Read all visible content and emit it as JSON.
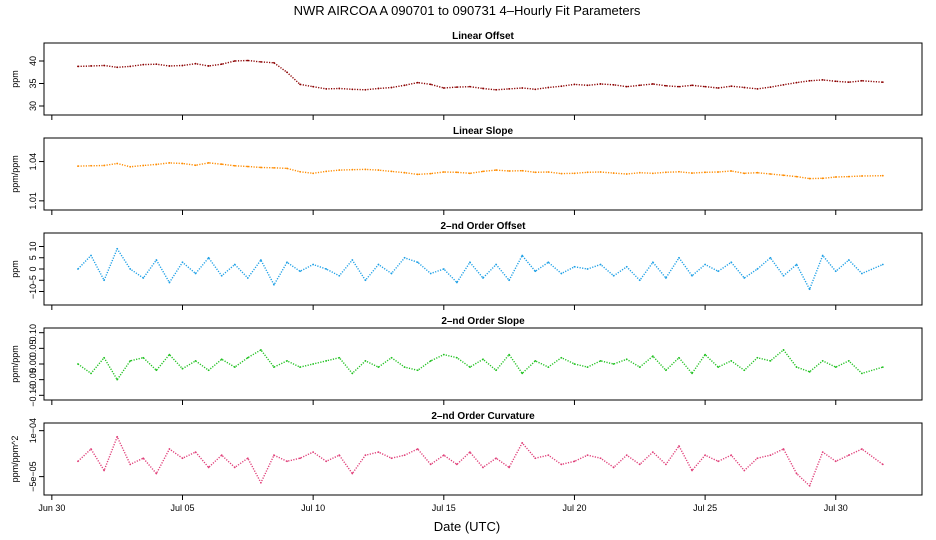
{
  "title": "NWR   AIRCOA A   090701 to 090731   4–Hourly Fit Parameters",
  "xlabel": "Date (UTC)",
  "xticks": [
    {
      "day": 0,
      "label": "Jun 30"
    },
    {
      "day": 5,
      "label": "Jul 05"
    },
    {
      "day": 10,
      "label": "Jul 10"
    },
    {
      "day": 15,
      "label": "Jul 15"
    },
    {
      "day": 20,
      "label": "Jul 20"
    },
    {
      "day": 25,
      "label": "Jul 25"
    },
    {
      "day": 30,
      "label": "Jul 30"
    }
  ],
  "xlim": [
    -0.3,
    33.3
  ],
  "chart_data": [
    {
      "type": "line",
      "title": "Linear Offset",
      "ylabel": "ppm",
      "ylim": [
        28,
        44
      ],
      "yticks": [
        30,
        35,
        40
      ],
      "ytick_labels": [
        "30",
        "35",
        "40"
      ],
      "color": "#8b0000",
      "x": [
        1,
        1.5,
        2,
        2.5,
        3,
        3.5,
        4,
        4.5,
        5,
        5.5,
        6,
        6.5,
        7,
        7.5,
        8,
        8.5,
        9,
        9.5,
        10,
        10.5,
        11,
        11.5,
        12,
        12.5,
        13,
        13.5,
        14,
        14.5,
        15,
        15.5,
        16,
        16.5,
        17,
        17.5,
        18,
        18.5,
        19,
        19.5,
        20,
        20.5,
        21,
        21.5,
        22,
        22.5,
        23,
        23.5,
        24,
        24.5,
        25,
        25.5,
        26,
        26.5,
        27,
        27.5,
        28,
        28.5,
        29,
        29.5,
        30,
        30.5,
        31,
        31.8
      ],
      "y": [
        38.8,
        38.9,
        39.0,
        38.6,
        38.8,
        39.2,
        39.3,
        38.9,
        39.0,
        39.4,
        38.9,
        39.3,
        40.0,
        40.1,
        39.8,
        39.6,
        37.5,
        34.8,
        34.3,
        33.8,
        33.9,
        33.7,
        33.6,
        33.9,
        34.1,
        34.6,
        35.2,
        34.8,
        34.0,
        34.2,
        34.3,
        33.9,
        33.6,
        33.8,
        34.0,
        33.7,
        34.1,
        34.4,
        34.8,
        34.6,
        34.9,
        34.7,
        34.3,
        34.6,
        34.9,
        34.5,
        34.3,
        34.6,
        34.3,
        34.0,
        34.4,
        34.1,
        33.8,
        34.2,
        34.7,
        35.2,
        35.6,
        35.8,
        35.5,
        35.3,
        35.6,
        35.3
      ]
    },
    {
      "type": "line",
      "title": "Linear Slope",
      "ylabel": "ppm/ppm",
      "ylim": [
        1.003,
        1.058
      ],
      "yticks": [
        1.01,
        1.04
      ],
      "ytick_labels": [
        "1.01",
        "1.04"
      ],
      "color": "#ff8c00",
      "x": [
        1,
        1.5,
        2,
        2.5,
        3,
        3.5,
        4,
        4.5,
        5,
        5.5,
        6,
        6.5,
        7,
        7.5,
        8,
        8.5,
        9,
        9.5,
        10,
        10.5,
        11,
        11.5,
        12,
        12.5,
        13,
        13.5,
        14,
        14.5,
        15,
        15.5,
        16,
        16.5,
        17,
        17.5,
        18,
        18.5,
        19,
        19.5,
        20,
        20.5,
        21,
        21.5,
        22,
        22.5,
        23,
        23.5,
        24,
        24.5,
        25,
        25.5,
        26,
        26.5,
        27,
        27.5,
        28,
        28.5,
        29,
        29.5,
        30,
        30.5,
        31,
        31.8
      ],
      "y": [
        1.0365,
        1.0368,
        1.037,
        1.0385,
        1.036,
        1.037,
        1.0378,
        1.039,
        1.0385,
        1.0372,
        1.039,
        1.038,
        1.0368,
        1.0362,
        1.0355,
        1.0352,
        1.0348,
        1.0322,
        1.031,
        1.0325,
        1.0335,
        1.0338,
        1.034,
        1.0335,
        1.0325,
        1.0315,
        1.0302,
        1.0308,
        1.032,
        1.0318,
        1.031,
        1.0325,
        1.0335,
        1.0328,
        1.033,
        1.0318,
        1.032,
        1.0308,
        1.031,
        1.0318,
        1.032,
        1.0312,
        1.0305,
        1.0315,
        1.031,
        1.0318,
        1.0322,
        1.0312,
        1.0318,
        1.032,
        1.0328,
        1.031,
        1.0315,
        1.0305,
        1.0295,
        1.0285,
        1.027,
        1.0272,
        1.0282,
        1.0285,
        1.029,
        1.0292
      ]
    },
    {
      "type": "line",
      "title": "2–nd Order Offset",
      "ylabel": "ppm",
      "ylim": [
        -16,
        16
      ],
      "yticks": [
        -10,
        -5,
        0,
        5,
        10
      ],
      "ytick_labels": [
        "−10",
        "−5",
        "0",
        "5",
        "10"
      ],
      "color": "#1ea0e6",
      "x": [
        1,
        1.5,
        2,
        2.5,
        3,
        3.5,
        4,
        4.5,
        5,
        5.5,
        6,
        6.5,
        7,
        7.5,
        8,
        8.5,
        9,
        9.5,
        10,
        10.5,
        11,
        11.5,
        12,
        12.5,
        13,
        13.5,
        14,
        14.5,
        15,
        15.5,
        16,
        16.5,
        17,
        17.5,
        18,
        18.5,
        19,
        19.5,
        20,
        20.5,
        21,
        21.5,
        22,
        22.5,
        23,
        23.5,
        24,
        24.5,
        25,
        25.5,
        26,
        26.5,
        27,
        27.5,
        28,
        28.5,
        29,
        29.5,
        30,
        30.5,
        31,
        31.8
      ],
      "y": [
        0,
        6,
        -5,
        9,
        0,
        -4,
        4,
        -6,
        3,
        -2,
        5,
        -3,
        2,
        -4,
        4,
        -7,
        3,
        -1,
        2,
        0,
        -3,
        4,
        -5,
        2,
        -2,
        5,
        3,
        -2,
        0,
        -6,
        3,
        -4,
        2,
        -5,
        6,
        -1,
        3,
        -2,
        1,
        0,
        2,
        -3,
        1,
        -5,
        3,
        -4,
        5,
        -3,
        2,
        -1,
        3,
        -4,
        0,
        5,
        -3,
        2,
        -9,
        6,
        -1,
        4,
        -2,
        2
      ]
    },
    {
      "type": "line",
      "title": "2–nd Order Slope",
      "ylabel": "ppm/ppm",
      "ylim": [
        -0.115,
        0.115
      ],
      "yticks": [
        -0.1,
        -0.05,
        0.0,
        0.05,
        0.1
      ],
      "ytick_labels": [
        "−0.10",
        "−0.05",
        "0.00",
        "0.05",
        "0.10"
      ],
      "color": "#22c222",
      "x": [
        1,
        1.5,
        2,
        2.5,
        3,
        3.5,
        4,
        4.5,
        5,
        5.5,
        6,
        6.5,
        7,
        7.5,
        8,
        8.5,
        9,
        9.5,
        10,
        10.5,
        11,
        11.5,
        12,
        12.5,
        13,
        13.5,
        14,
        14.5,
        15,
        15.5,
        16,
        16.5,
        17,
        17.5,
        18,
        18.5,
        19,
        19.5,
        20,
        20.5,
        21,
        21.5,
        22,
        22.5,
        23,
        23.5,
        24,
        24.5,
        25,
        25.5,
        26,
        26.5,
        27,
        27.5,
        28,
        28.5,
        29,
        29.5,
        30,
        30.5,
        31,
        31.8
      ],
      "y": [
        0,
        -0.03,
        0.02,
        -0.05,
        0.01,
        0.02,
        -0.02,
        0.03,
        -0.015,
        0.01,
        -0.02,
        0.015,
        -0.01,
        0.02,
        0.045,
        -0.01,
        0.01,
        -0.01,
        0,
        0.01,
        0.02,
        -0.03,
        0.01,
        -0.01,
        0.02,
        -0.01,
        -0.02,
        0.01,
        0.03,
        0.02,
        -0.01,
        0.015,
        -0.02,
        0.03,
        -0.03,
        0.01,
        -0.01,
        0.02,
        0,
        -0.01,
        0.01,
        0,
        0.015,
        -0.01,
        0.025,
        -0.02,
        0.02,
        -0.03,
        0.03,
        -0.01,
        0.01,
        -0.02,
        0.02,
        0.01,
        0.045,
        -0.01,
        -0.025,
        0.01,
        -0.01,
        0.01,
        -0.03,
        -0.01
      ]
    },
    {
      "type": "line",
      "title": "2–nd Order Curvature",
      "ylabel": "ppm/ppm^2",
      "ylim": [
        -0.00011,
        0.000125
      ],
      "yticks": [
        -5e-05,
        0.0001
      ],
      "ytick_labels": [
        "−5e−05",
        "1e−04"
      ],
      "color": "#e0407a",
      "x": [
        1,
        1.5,
        2,
        2.5,
        3,
        3.5,
        4,
        4.5,
        5,
        5.5,
        6,
        6.5,
        7,
        7.5,
        8,
        8.5,
        9,
        9.5,
        10,
        10.5,
        11,
        11.5,
        12,
        12.5,
        13,
        13.5,
        14,
        14.5,
        15,
        15.5,
        16,
        16.5,
        17,
        17.5,
        18,
        18.5,
        19,
        19.5,
        20,
        20.5,
        21,
        21.5,
        22,
        22.5,
        23,
        23.5,
        24,
        24.5,
        25,
        25.5,
        26,
        26.5,
        27,
        27.5,
        28,
        28.5,
        29,
        29.5,
        30,
        30.5,
        31,
        31.8
      ],
      "y": [
        0,
        4e-05,
        -3e-05,
        8e-05,
        -1e-05,
        1e-05,
        -4e-05,
        4e-05,
        1e-05,
        3e-05,
        -2e-05,
        2e-05,
        -2e-05,
        1e-05,
        -7e-05,
        2e-05,
        0,
        1e-05,
        3e-05,
        0,
        2e-05,
        -4e-05,
        2e-05,
        3e-05,
        1e-05,
        2e-05,
        4e-05,
        -1e-05,
        2e-05,
        -1e-05,
        3e-05,
        -2e-05,
        1e-05,
        -2e-05,
        6e-05,
        1e-05,
        2e-05,
        -1e-05,
        0,
        2e-05,
        1e-05,
        -2e-05,
        2e-05,
        -1e-05,
        3e-05,
        -1e-05,
        5e-05,
        -3e-05,
        2e-05,
        0,
        2e-05,
        -3e-05,
        1e-05,
        2e-05,
        4e-05,
        -4e-05,
        -8e-05,
        3e-05,
        0,
        2e-05,
        4e-05,
        -1e-05
      ]
    }
  ]
}
